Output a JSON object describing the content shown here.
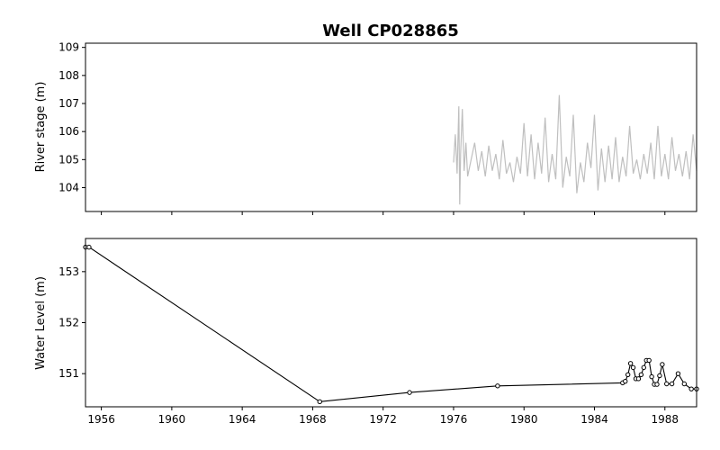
{
  "chart_data": [
    {
      "panel": "top",
      "type": "line",
      "title": "Well CP028865",
      "xlabel": "",
      "ylabel": "River stage (m)",
      "xlim": [
        1955.1,
        1989.8
      ],
      "ylim": [
        103.15,
        109.15
      ],
      "yticks": [
        104,
        105,
        106,
        107,
        108,
        109
      ],
      "xticks": [
        1956,
        1960,
        1964,
        1968,
        1972,
        1976,
        1980,
        1984,
        1988
      ],
      "show_x_tick_labels": false,
      "series": [
        {
          "color": "#bfbfbf",
          "x": [
            1976.0,
            1976.1,
            1976.2,
            1976.3,
            1976.35,
            1976.4,
            1976.5,
            1976.6,
            1976.7,
            1976.8,
            1977.0,
            1977.2,
            1977.4,
            1977.6,
            1977.8,
            1978.0,
            1978.2,
            1978.4,
            1978.6,
            1978.8,
            1979.0,
            1979.2,
            1979.4,
            1979.6,
            1979.8,
            1980.0,
            1980.2,
            1980.4,
            1980.6,
            1980.8,
            1981.0,
            1981.2,
            1981.4,
            1981.6,
            1981.8,
            1982.0,
            1982.2,
            1982.4,
            1982.6,
            1982.8,
            1983.0,
            1983.2,
            1983.4,
            1983.6,
            1983.8,
            1984.0,
            1984.2,
            1984.4,
            1984.6,
            1984.8,
            1985.0,
            1985.2,
            1985.4,
            1985.6,
            1985.8,
            1986.0,
            1986.2,
            1986.4,
            1986.6,
            1986.8,
            1987.0,
            1987.2,
            1987.4,
            1987.6,
            1987.8,
            1988.0,
            1988.2,
            1988.4,
            1988.6,
            1988.8,
            1989.0,
            1989.2,
            1989.4,
            1989.6,
            1989.8
          ],
          "y": [
            104.9,
            105.9,
            104.5,
            106.9,
            103.4,
            105.2,
            106.8,
            104.6,
            105.6,
            104.4,
            105.0,
            105.6,
            104.6,
            105.3,
            104.4,
            105.5,
            104.6,
            105.2,
            104.3,
            105.7,
            104.5,
            104.9,
            104.2,
            105.1,
            104.5,
            106.3,
            104.4,
            105.9,
            104.3,
            105.6,
            104.5,
            106.5,
            104.2,
            105.2,
            104.3,
            107.3,
            104.0,
            105.1,
            104.4,
            106.6,
            103.8,
            104.9,
            104.2,
            105.6,
            104.7,
            106.6,
            103.9,
            105.4,
            104.2,
            105.5,
            104.3,
            105.8,
            104.2,
            105.1,
            104.4,
            106.2,
            104.5,
            105.0,
            104.3,
            105.2,
            104.5,
            105.6,
            104.3,
            106.2,
            104.4,
            105.2,
            104.3,
            105.8,
            104.6,
            105.2,
            104.4,
            105.3,
            104.3,
            105.9,
            104.6
          ]
        }
      ],
      "grid": false
    },
    {
      "panel": "bottom",
      "type": "line",
      "title": "",
      "xlabel": "",
      "ylabel": "Water Level (m)",
      "xlim": [
        1955.1,
        1989.8
      ],
      "ylim": [
        150.35,
        153.65
      ],
      "yticks": [
        151,
        152,
        153
      ],
      "xticks": [
        1956,
        1960,
        1964,
        1968,
        1972,
        1976,
        1980,
        1984,
        1988
      ],
      "series": [
        {
          "color": "#000000",
          "marker": "circle-open",
          "x": [
            1955.1,
            1955.3,
            1968.4,
            1973.5,
            1978.5,
            1985.6,
            1985.75,
            1985.9,
            1986.05,
            1986.2,
            1986.35,
            1986.5,
            1986.65,
            1986.8,
            1986.95,
            1987.1,
            1987.25,
            1987.4,
            1987.55,
            1987.7,
            1987.85,
            1988.1,
            1988.4,
            1988.75,
            1989.1,
            1989.5,
            1989.8
          ],
          "y": [
            153.48,
            153.48,
            150.45,
            150.63,
            150.76,
            150.82,
            150.85,
            150.98,
            151.2,
            151.12,
            150.9,
            150.9,
            150.98,
            151.12,
            151.26,
            151.26,
            150.94,
            150.79,
            150.79,
            150.96,
            151.18,
            150.8,
            150.8,
            151.0,
            150.8,
            150.7,
            150.7
          ]
        }
      ],
      "grid": false
    }
  ],
  "title": "Well CP028865",
  "top_ylabel": "River stage (m)",
  "bottom_ylabel": "Water Level (m)",
  "x_tick_labels": [
    "1956",
    "1960",
    "1964",
    "1968",
    "1972",
    "1976",
    "1980",
    "1984",
    "1988"
  ],
  "top_y_tick_labels": [
    "104",
    "105",
    "106",
    "107",
    "108",
    "109"
  ],
  "bottom_y_tick_labels": [
    "151",
    "152",
    "153"
  ]
}
